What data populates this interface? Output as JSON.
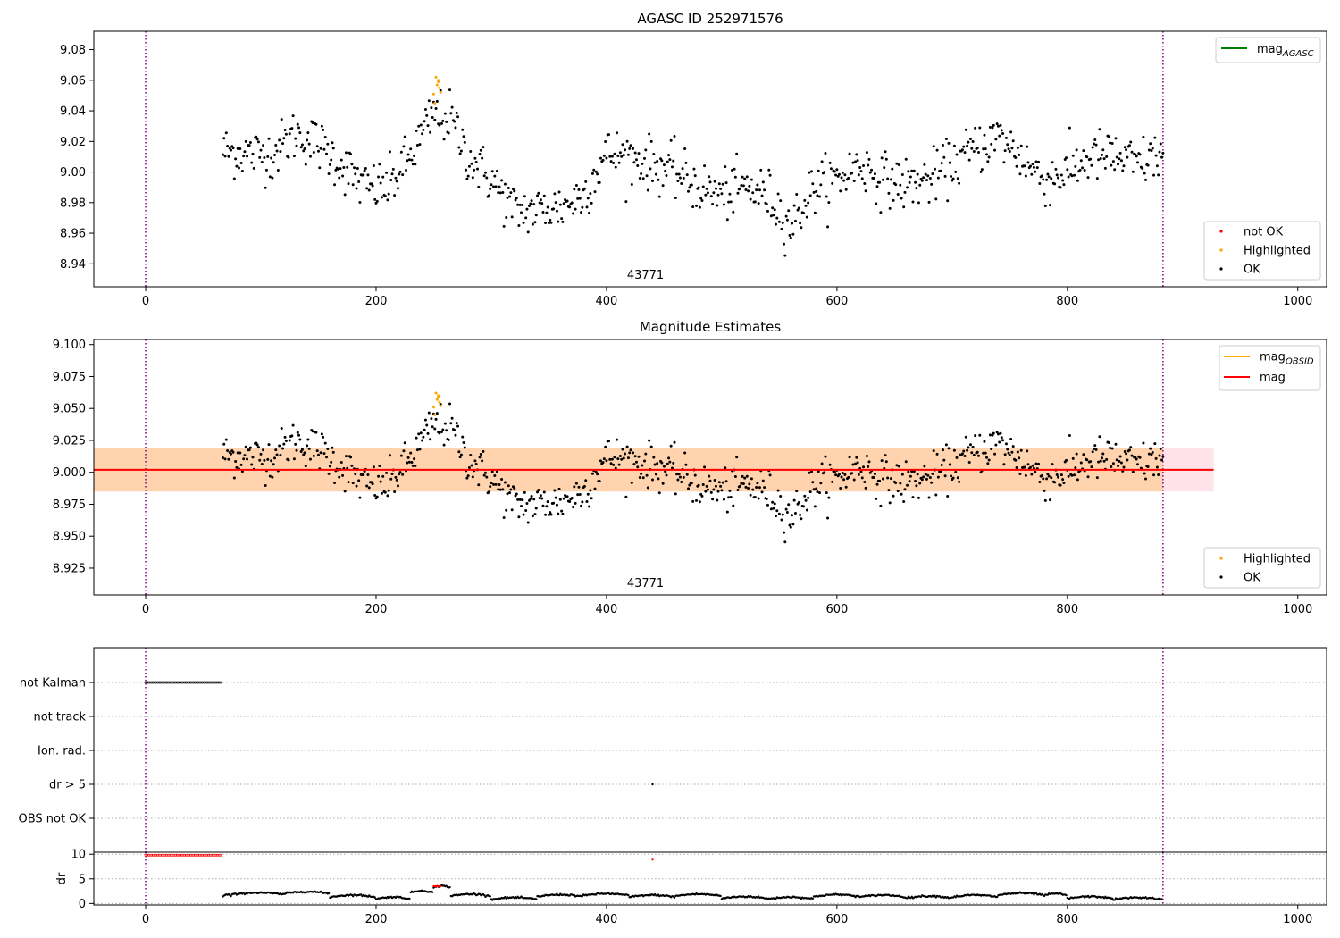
{
  "chart_data": [
    {
      "type": "scatter",
      "title": "AGASC ID 252971576",
      "xlim": [
        -45,
        1025
      ],
      "ylim": [
        8.925,
        9.092
      ],
      "xticks": [
        0,
        200,
        400,
        600,
        800,
        1000
      ],
      "yticks": [
        8.94,
        8.96,
        8.98,
        9.0,
        9.02,
        9.04,
        9.06,
        9.08
      ],
      "ytick_labels": [
        "8.94",
        "8.96",
        "8.98",
        "9.00",
        "9.02",
        "9.04",
        "9.06",
        "9.08"
      ],
      "vlines": [
        0,
        883
      ],
      "vline_color": "#800080",
      "annotation": {
        "x": 440,
        "text": "43771"
      },
      "legend_lines": [
        {
          "label": "mag",
          "subscript": "AGASC",
          "color": "#008000"
        }
      ],
      "legend_points": [
        {
          "label": "not OK",
          "color": "#ff0000"
        },
        {
          "label": "Highlighted",
          "color": "#ffa500"
        },
        {
          "label": "OK",
          "color": "#000000"
        }
      ],
      "series_ref": "magnitude_series"
    },
    {
      "type": "scatter",
      "title": "Magnitude Estimates",
      "xlim": [
        -45,
        1025
      ],
      "ylim": [
        8.904,
        9.104
      ],
      "xticks": [
        0,
        200,
        400,
        600,
        800,
        1000
      ],
      "yticks": [
        8.925,
        8.95,
        8.975,
        9.0,
        9.025,
        9.05,
        9.075,
        9.1
      ],
      "ytick_labels": [
        "8.925",
        "8.950",
        "8.975",
        "9.000",
        "9.025",
        "9.050",
        "9.075",
        "9.100"
      ],
      "vlines": [
        0,
        883
      ],
      "vline_color": "#800080",
      "annotation": {
        "x": 440,
        "text": "43771"
      },
      "mag_line": {
        "value": 9.002,
        "x_range": [
          -45,
          927
        ],
        "color": "#ff0000"
      },
      "band_outer": {
        "low": 8.985,
        "high": 9.019,
        "x_range": [
          -45,
          927
        ],
        "color": "#ffc0cb"
      },
      "band_inner": {
        "low": 8.985,
        "high": 9.019,
        "x_range": [
          -45,
          883
        ],
        "color": "#ffa500"
      },
      "legend_lines": [
        {
          "label": "mag",
          "subscript": "OBSID",
          "color": "#ffa500"
        },
        {
          "label": "mag",
          "subscript": "",
          "color": "#ff0000"
        }
      ],
      "legend_points": [
        {
          "label": "Highlighted",
          "color": "#ffa500"
        },
        {
          "label": "OK",
          "color": "#000000"
        }
      ],
      "series_ref": "magnitude_series"
    },
    {
      "type": "scatter",
      "title": "",
      "xlim": [
        -45,
        1025
      ],
      "ylabels": [
        "not Kalman",
        "not track",
        "Ion. rad.",
        "dr > 5",
        "OBS not OK"
      ],
      "flags": {
        "not Kalman": {
          "x_range": [
            0,
            65
          ],
          "color": "#000000"
        },
        "dr > 5": {
          "x": [
            440
          ],
          "color": "#000000"
        }
      },
      "vlines": [
        0,
        883
      ],
      "vline_color": "#800080"
    },
    {
      "type": "scatter",
      "title": "",
      "ylabel": "dr",
      "xlim": [
        -45,
        1025
      ],
      "ylim": [
        -0.3,
        10.4
      ],
      "xticks": [
        0,
        200,
        400,
        600,
        800,
        1000
      ],
      "yticks": [
        0,
        5,
        10
      ],
      "ytick_labels": [
        "0",
        "5",
        "10"
      ],
      "red_points": [
        {
          "x_range": [
            0,
            65
          ],
          "y": 9.8
        },
        {
          "x": [
            440
          ],
          "y": [
            8.9
          ]
        }
      ],
      "vlines": [
        0,
        883
      ],
      "vline_color": "#800080"
    }
  ],
  "magnitude_series": {
    "x_range": [
      67,
      883
    ],
    "baseline": 9.002,
    "anchors": [
      [
        67,
        9.014
      ],
      [
        90,
        9.012
      ],
      [
        110,
        9.012
      ],
      [
        130,
        9.025
      ],
      [
        150,
        9.018
      ],
      [
        170,
        9.005
      ],
      [
        190,
        8.99
      ],
      [
        210,
        8.99
      ],
      [
        230,
        9.01
      ],
      [
        250,
        9.038
      ],
      [
        265,
        9.035
      ],
      [
        280,
        9.01
      ],
      [
        300,
        8.995
      ],
      [
        320,
        8.975
      ],
      [
        340,
        8.975
      ],
      [
        360,
        8.977
      ],
      [
        380,
        8.985
      ],
      [
        400,
        9.012
      ],
      [
        420,
        9.01
      ],
      [
        440,
        9.005
      ],
      [
        460,
        9.0
      ],
      [
        480,
        8.99
      ],
      [
        500,
        8.985
      ],
      [
        520,
        8.99
      ],
      [
        540,
        8.985
      ],
      [
        560,
        8.965
      ],
      [
        580,
        8.99
      ],
      [
        600,
        8.995
      ],
      [
        620,
        9.005
      ],
      [
        640,
        8.995
      ],
      [
        660,
        8.992
      ],
      [
        680,
        8.995
      ],
      [
        700,
        9.005
      ],
      [
        720,
        9.015
      ],
      [
        740,
        9.023
      ],
      [
        760,
        9.01
      ],
      [
        780,
        8.995
      ],
      [
        800,
        9.0
      ],
      [
        820,
        9.01
      ],
      [
        840,
        9.01
      ],
      [
        860,
        9.005
      ],
      [
        883,
        9.012
      ]
    ],
    "highlighted_points": [
      [
        250,
        9.051
      ],
      [
        252,
        9.062
      ],
      [
        253,
        9.057
      ],
      [
        254,
        9.059
      ],
      [
        255,
        9.055
      ],
      [
        256,
        9.052
      ],
      [
        254,
        9.06
      ],
      [
        251,
        9.045
      ]
    ]
  },
  "dr_series": {
    "segments": [
      [
        67,
        75,
        1.4
      ],
      [
        75,
        120,
        1.8
      ],
      [
        120,
        160,
        2.0
      ],
      [
        160,
        200,
        1.3
      ],
      [
        200,
        230,
        0.9
      ],
      [
        230,
        250,
        2.2
      ],
      [
        250,
        265,
        3.2
      ],
      [
        265,
        300,
        1.5
      ],
      [
        300,
        340,
        0.8
      ],
      [
        340,
        380,
        1.4
      ],
      [
        380,
        420,
        1.6
      ],
      [
        420,
        460,
        1.3
      ],
      [
        460,
        500,
        1.5
      ],
      [
        500,
        540,
        1.0
      ],
      [
        540,
        580,
        0.9
      ],
      [
        580,
        620,
        1.4
      ],
      [
        620,
        660,
        1.3
      ],
      [
        660,
        700,
        1.1
      ],
      [
        700,
        740,
        1.3
      ],
      [
        740,
        780,
        1.7
      ],
      [
        780,
        800,
        1.6
      ],
      [
        800,
        840,
        1.0
      ],
      [
        840,
        883,
        0.8
      ]
    ]
  }
}
